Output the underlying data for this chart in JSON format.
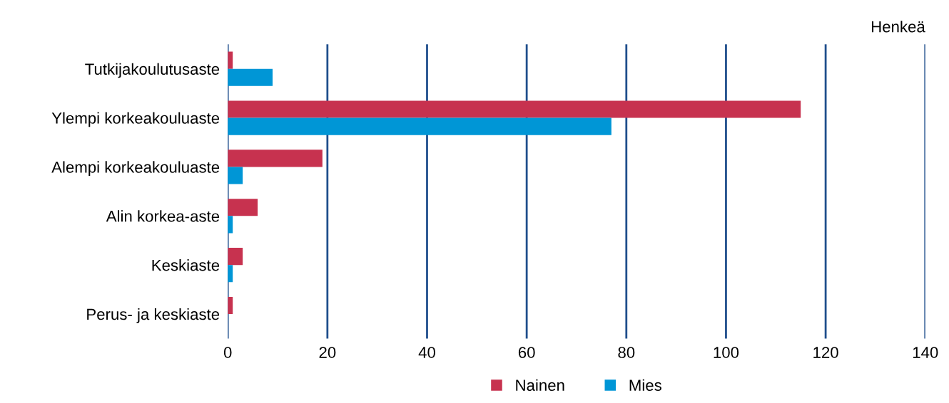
{
  "chart_data": {
    "type": "bar",
    "orientation": "horizontal",
    "categories": [
      "Tutkijakoulutusaste",
      "Ylempi korkeakouluaste",
      "Alempi korkeakouluaste",
      "Alin korkea-aste",
      "Keskiaste",
      "Perus- ja keskiaste"
    ],
    "series": [
      {
        "name": "Nainen",
        "color": "#c7324f",
        "values": [
          1,
          115,
          19,
          6,
          3,
          1
        ]
      },
      {
        "name": "Mies",
        "color": "#0096d6",
        "values": [
          9,
          77,
          3,
          1,
          1,
          0
        ]
      }
    ],
    "xlabel": "Henkeä",
    "xlim": [
      0,
      140
    ],
    "xticks": [
      0,
      20,
      40,
      60,
      80,
      100,
      120,
      140
    ],
    "grid": "x",
    "legend": "bottom"
  }
}
